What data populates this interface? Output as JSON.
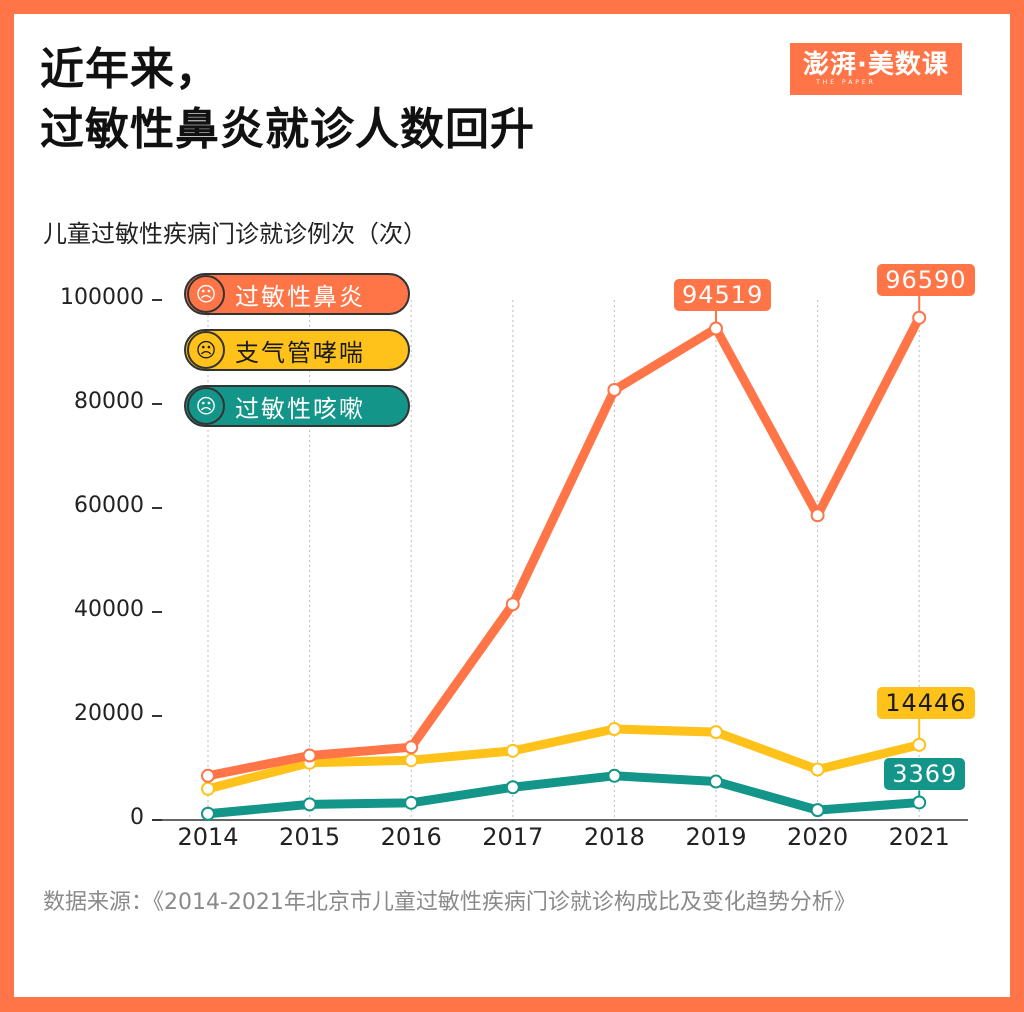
{
  "header": {
    "title_lines": [
      "近年来，",
      "过敏性鼻炎就诊人数回升"
    ],
    "logo_text": "澎湃·美数课",
    "logo_subtext": "THE PAPER"
  },
  "subtitle": "儿童过敏性疾病门诊就诊例次（次）",
  "legend": [
    {
      "label": "过敏性鼻炎",
      "icon": "sneezing-boy-face-icon",
      "color": "#FF7548",
      "text_color": "#ffffff"
    },
    {
      "label": "支气管哮喘",
      "icon": "coughing-girl-face-icon",
      "color": "#FFC21A",
      "text_color": "#1a1a1a"
    },
    {
      "label": "过敏性咳嗽",
      "icon": "coughing-boy-face-icon",
      "color": "#13958A",
      "text_color": "#ffffff"
    }
  ],
  "callouts": {
    "rhinitis_2019": "94519",
    "rhinitis_2021": "96590",
    "asthma_2021": "14446",
    "cough_2021": "3369"
  },
  "source": "数据来源：《2014-2021年北京市儿童过敏性疾病门诊就诊构成比及变化趋势分析》",
  "colors": {
    "frame": "#FF7548",
    "rhinitis": "#FF7548",
    "asthma": "#FFC21A",
    "cough": "#13958A"
  },
  "chart_data": {
    "type": "line",
    "title": "近年来，过敏性鼻炎就诊人数回升",
    "xlabel": "",
    "ylabel": "儿童过敏性疾病门诊就诊例次（次）",
    "categories": [
      "2014",
      "2015",
      "2016",
      "2017",
      "2018",
      "2019",
      "2020",
      "2021"
    ],
    "ylim": [
      0,
      100000
    ],
    "yticks": [
      "0",
      "20000",
      "40000",
      "60000",
      "80000",
      "100000"
    ],
    "grid": "vertical dotted lines at each year",
    "legend_position": "top-left inside plot",
    "series": [
      {
        "name": "过敏性鼻炎",
        "color": "#FF7548",
        "values": [
          8500,
          12400,
          14000,
          41500,
          82700,
          94519,
          58600,
          96590
        ]
      },
      {
        "name": "支气管哮喘",
        "color": "#FFC21A",
        "values": [
          6000,
          11000,
          11500,
          13300,
          17500,
          16900,
          9700,
          14446
        ]
      },
      {
        "name": "过敏性咳嗽",
        "color": "#13958A",
        "values": [
          1200,
          3000,
          3300,
          6300,
          8500,
          7400,
          1900,
          3369
        ]
      }
    ],
    "annotations": [
      {
        "series": "过敏性鼻炎",
        "x": "2019",
        "text": "94519"
      },
      {
        "series": "过敏性鼻炎",
        "x": "2021",
        "text": "96590"
      },
      {
        "series": "支气管哮喘",
        "x": "2021",
        "text": "14446"
      },
      {
        "series": "过敏性咳嗽",
        "x": "2021",
        "text": "3369"
      }
    ]
  }
}
